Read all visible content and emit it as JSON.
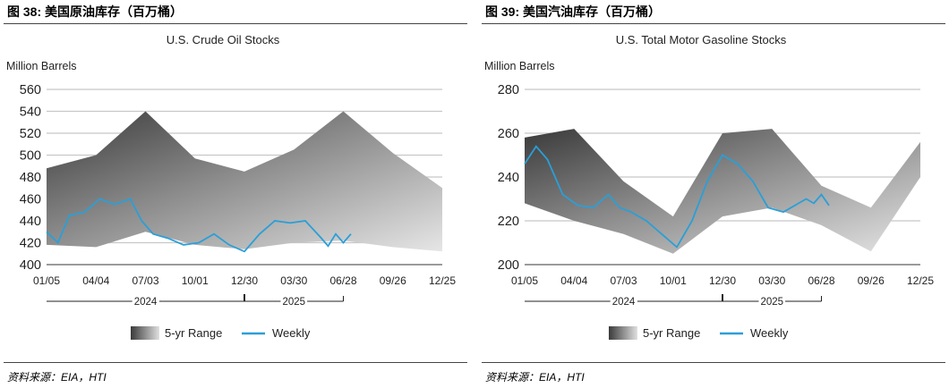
{
  "panels": [
    {
      "fig_title": "图 38:  美国原油库存（百万桶）",
      "source": "资料来源：EIA，HTI",
      "chart_data": {
        "type": "area",
        "title": "U.S. Crude Oil Stocks",
        "ylabel": "Million Barrels",
        "ylim": [
          400,
          560
        ],
        "yticks": [
          400,
          420,
          440,
          460,
          480,
          500,
          520,
          540,
          560
        ],
        "x_ticks": [
          "01/05",
          "04/04",
          "07/03",
          "10/01",
          "12/30",
          "03/30",
          "06/28",
          "09/26",
          "12/25"
        ],
        "year_labels": [
          "2024",
          "2025"
        ],
        "legend": [
          "5-yr Range",
          "Weekly"
        ],
        "series": [
          {
            "name": "5-yr Range",
            "x": [
              0,
              13,
              26,
              39,
              52,
              65,
              78,
              91,
              104
            ],
            "upper": [
              488,
              500,
              540,
              497,
              485,
              505,
              540,
              502,
              470
            ],
            "lower": [
              418,
              416,
              430,
              418,
              414,
              420,
              422,
              416,
              412
            ]
          },
          {
            "name": "Weekly",
            "x": [
              0,
              3,
              6,
              10,
              14,
              18,
              22,
              25,
              28,
              32,
              36,
              40,
              44,
              48,
              52,
              56,
              60,
              64,
              68,
              72,
              74,
              76,
              78,
              80
            ],
            "values": [
              430,
              420,
              445,
              448,
              460,
              455,
              460,
              440,
              428,
              424,
              418,
              420,
              428,
              418,
              412,
              428,
              440,
              438,
              440,
              425,
              417,
              428,
              420,
              428
            ]
          }
        ]
      }
    },
    {
      "fig_title": "图 39:  美国汽油库存（百万桶）",
      "source": "资料来源：EIA，HTI",
      "chart_data": {
        "type": "area",
        "title": "U.S. Total Motor Gasoline Stocks",
        "ylabel": "Million Barrels",
        "ylim": [
          200,
          280
        ],
        "yticks": [
          200,
          220,
          240,
          260,
          280
        ],
        "x_ticks": [
          "01/05",
          "04/04",
          "07/03",
          "10/01",
          "12/30",
          "03/30",
          "06/28",
          "09/26",
          "12/25"
        ],
        "year_labels": [
          "2024",
          "2025"
        ],
        "legend": [
          "5-yr Range",
          "Weekly"
        ],
        "series": [
          {
            "name": "5-yr Range",
            "x": [
              0,
              13,
              26,
              39,
              52,
              65,
              78,
              91,
              104
            ],
            "upper": [
              258,
              262,
              238,
              222,
              260,
              262,
              236,
              226,
              256
            ],
            "lower": [
              228,
              220,
              214,
              205,
              222,
              226,
              218,
              206,
              240
            ]
          },
          {
            "name": "Weekly",
            "x": [
              0,
              3,
              6,
              10,
              14,
              18,
              22,
              25,
              28,
              32,
              36,
              40,
              44,
              48,
              52,
              56,
              60,
              64,
              68,
              72,
              74,
              76,
              78,
              80
            ],
            "values": [
              246,
              254,
              248,
              232,
              227,
              226,
              232,
              226,
              224,
              220,
              214,
              208,
              220,
              238,
              250,
              246,
              238,
              226,
              224,
              228,
              230,
              228,
              232,
              227
            ]
          }
        ]
      }
    }
  ]
}
